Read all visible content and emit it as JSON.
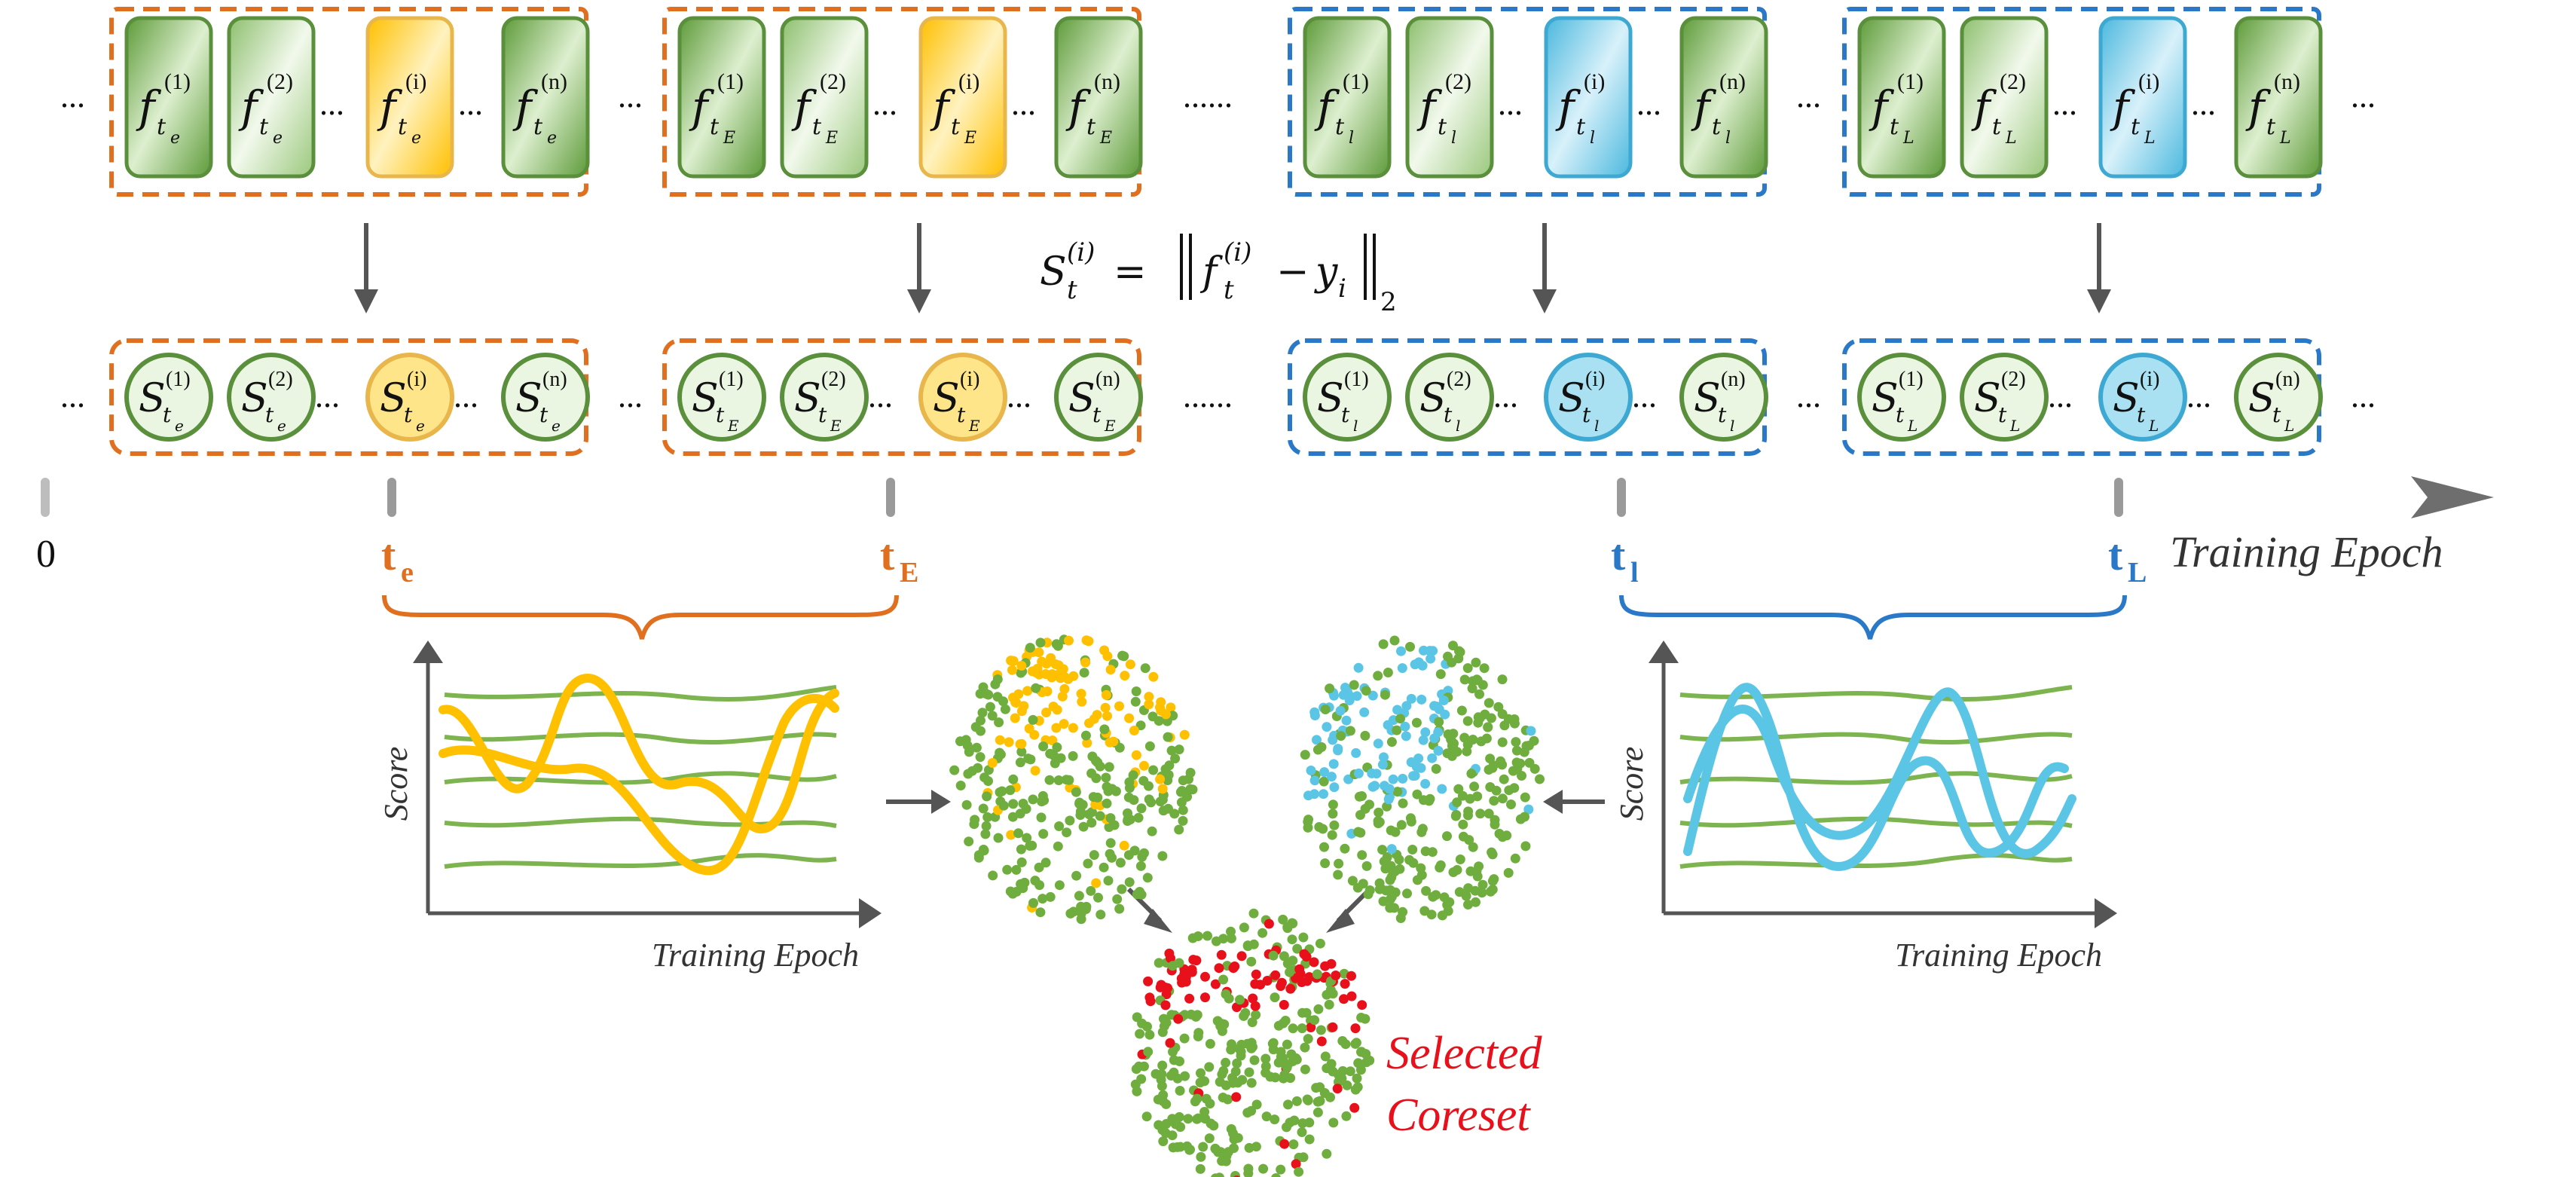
{
  "colors": {
    "orange": "#E07020",
    "blue": "#2A78C8",
    "green_dark": "#5A8F3C",
    "green_fill": "#8DC26A",
    "yellow": "#FFC000",
    "yellow_light": "#FFE58A",
    "cyan": "#5BC5E5",
    "cyan_light": "#A9E0F2",
    "red": "#E8101A",
    "arrow_grey": "#555555"
  },
  "ellipsis": {
    "short": "...",
    "long": "......"
  },
  "model_groups": [
    {
      "style": "orange",
      "items": [
        {
          "base": "f",
          "sub": "t",
          "subsub": "e",
          "sup": "(1)",
          "highlight": false
        },
        {
          "base": "f",
          "sub": "t",
          "subsub": "e",
          "sup": "(2)",
          "highlight": false
        },
        {
          "base": "f",
          "sub": "t",
          "subsub": "e",
          "sup": "(i)",
          "highlight": true
        },
        {
          "base": "f",
          "sub": "t",
          "subsub": "e",
          "sup": "(n)",
          "highlight": false
        }
      ]
    },
    {
      "style": "orange",
      "items": [
        {
          "base": "f",
          "sub": "t",
          "subsub": "E",
          "sup": "(1)",
          "highlight": false
        },
        {
          "base": "f",
          "sub": "t",
          "subsub": "E",
          "sup": "(2)",
          "highlight": false
        },
        {
          "base": "f",
          "sub": "t",
          "subsub": "E",
          "sup": "(i)",
          "highlight": true
        },
        {
          "base": "f",
          "sub": "t",
          "subsub": "E",
          "sup": "(n)",
          "highlight": false
        }
      ]
    },
    {
      "style": "blue",
      "items": [
        {
          "base": "f",
          "sub": "t",
          "subsub": "l",
          "sup": "(1)",
          "highlight": false
        },
        {
          "base": "f",
          "sub": "t",
          "subsub": "l",
          "sup": "(2)",
          "highlight": false
        },
        {
          "base": "f",
          "sub": "t",
          "subsub": "l",
          "sup": "(i)",
          "highlight": true
        },
        {
          "base": "f",
          "sub": "t",
          "subsub": "l",
          "sup": "(n)",
          "highlight": false
        }
      ]
    },
    {
      "style": "blue",
      "items": [
        {
          "base": "f",
          "sub": "t",
          "subsub": "L",
          "sup": "(1)",
          "highlight": false
        },
        {
          "base": "f",
          "sub": "t",
          "subsub": "L",
          "sup": "(2)",
          "highlight": false
        },
        {
          "base": "f",
          "sub": "t",
          "subsub": "L",
          "sup": "(i)",
          "highlight": true
        },
        {
          "base": "f",
          "sub": "t",
          "subsub": "L",
          "sup": "(n)",
          "highlight": false
        }
      ]
    }
  ],
  "score_groups": [
    {
      "style": "orange",
      "items": [
        {
          "base": "S",
          "sub": "t",
          "subsub": "e",
          "sup": "(1)",
          "highlight": false
        },
        {
          "base": "S",
          "sub": "t",
          "subsub": "e",
          "sup": "(2)",
          "highlight": false
        },
        {
          "base": "S",
          "sub": "t",
          "subsub": "e",
          "sup": "(i)",
          "highlight": true
        },
        {
          "base": "S",
          "sub": "t",
          "subsub": "e",
          "sup": "(n)",
          "highlight": false
        }
      ]
    },
    {
      "style": "orange",
      "items": [
        {
          "base": "S",
          "sub": "t",
          "subsub": "E",
          "sup": "(1)",
          "highlight": false
        },
        {
          "base": "S",
          "sub": "t",
          "subsub": "E",
          "sup": "(2)",
          "highlight": false
        },
        {
          "base": "S",
          "sub": "t",
          "subsub": "E",
          "sup": "(i)",
          "highlight": true
        },
        {
          "base": "S",
          "sub": "t",
          "subsub": "E",
          "sup": "(n)",
          "highlight": false
        }
      ]
    },
    {
      "style": "blue",
      "items": [
        {
          "base": "S",
          "sub": "t",
          "subsub": "l",
          "sup": "(1)",
          "highlight": false
        },
        {
          "base": "S",
          "sub": "t",
          "subsub": "l",
          "sup": "(2)",
          "highlight": false
        },
        {
          "base": "S",
          "sub": "t",
          "subsub": "l",
          "sup": "(i)",
          "highlight": true
        },
        {
          "base": "S",
          "sub": "t",
          "subsub": "l",
          "sup": "(n)",
          "highlight": false
        }
      ]
    },
    {
      "style": "blue",
      "items": [
        {
          "base": "S",
          "sub": "t",
          "subsub": "L",
          "sup": "(1)",
          "highlight": false
        },
        {
          "base": "S",
          "sub": "t",
          "subsub": "L",
          "sup": "(2)",
          "highlight": false
        },
        {
          "base": "S",
          "sub": "t",
          "subsub": "L",
          "sup": "(i)",
          "highlight": true
        },
        {
          "base": "S",
          "sub": "t",
          "subsub": "L",
          "sup": "(n)",
          "highlight": false
        }
      ]
    }
  ],
  "formula": {
    "lhs_base": "S",
    "lhs_sub": "t",
    "lhs_sup": "(i)",
    "equals": "=",
    "f_base": "f",
    "f_sub": "t",
    "f_sup": "(i)",
    "minus": "−",
    "y_base": "y",
    "y_sub": "i",
    "norm_sub": "2"
  },
  "timeline": {
    "origin": "0",
    "markers": [
      {
        "base": "t",
        "sub": "e",
        "style": "orange"
      },
      {
        "base": "t",
        "sub": "E",
        "style": "orange"
      },
      {
        "base": "t",
        "sub": "l",
        "style": "blue"
      },
      {
        "base": "t",
        "sub": "L",
        "style": "blue"
      }
    ],
    "axis_label": "Training Epoch"
  },
  "left_plot": {
    "ylabel": "Score",
    "xlabel": "Training Epoch"
  },
  "right_plot": {
    "ylabel": "Score",
    "xlabel": "Training Epoch"
  },
  "coreset_label": [
    "Selected",
    "Coreset"
  ]
}
